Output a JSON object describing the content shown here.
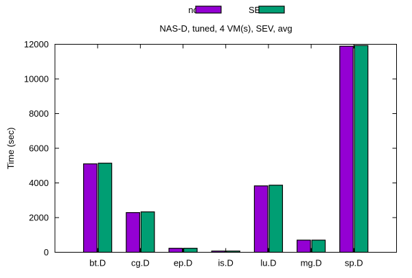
{
  "chart_data": {
    "type": "bar",
    "title": "NAS-D, tuned, 4 VM(s), SEV, avg",
    "xlabel": "",
    "ylabel": "Time (sec)",
    "ylim": [
      0,
      12000
    ],
    "yticks": [
      0,
      2000,
      4000,
      6000,
      8000,
      10000,
      12000
    ],
    "categories": [
      "bt.D",
      "cg.D",
      "ep.D",
      "is.D",
      "lu.D",
      "mg.D",
      "sp.D"
    ],
    "legend_position": "top-center",
    "grid": false,
    "series": [
      {
        "name": "no-SEV",
        "color": "#9400d3",
        "values": [
          5100,
          2290,
          230,
          70,
          3830,
          700,
          11890
        ]
      },
      {
        "name": "SEV",
        "color": "#009e73",
        "values": [
          5140,
          2330,
          230,
          70,
          3870,
          700,
          11930
        ]
      }
    ]
  }
}
